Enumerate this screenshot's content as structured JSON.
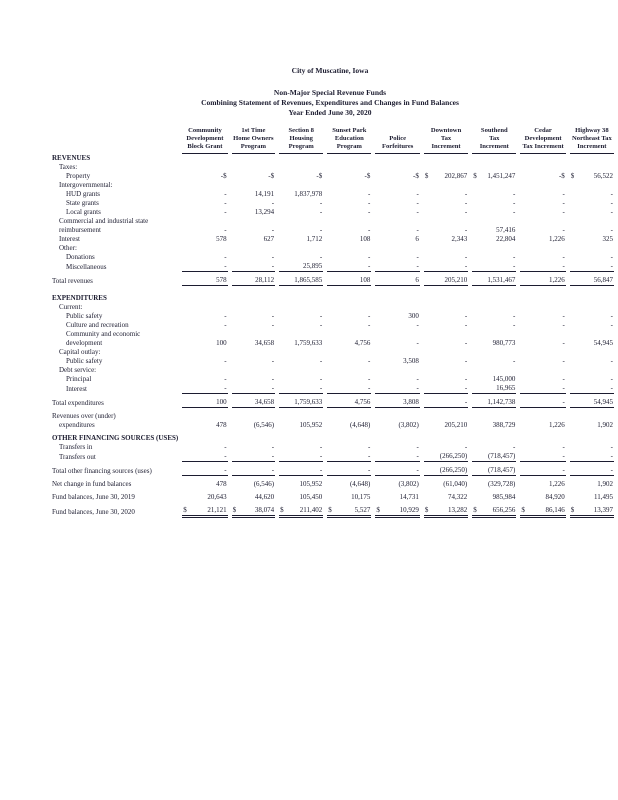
{
  "title": {
    "city": "City of Muscatine, Iowa",
    "line1": "Non-Major Special Revenue Funds",
    "line2": "Combining Statement of Revenues, Expenditures and Changes in Fund Balances",
    "line3": "Year Ended June 30, 2020"
  },
  "columns": [
    [
      "Community",
      "Development",
      "Block Grant"
    ],
    [
      "1st Time",
      "Home Owners",
      "Program"
    ],
    [
      "Section 8",
      "Housing",
      "Program"
    ],
    [
      "Sunset Park",
      "Education",
      "Program"
    ],
    [
      "Police",
      "Forfeitures"
    ],
    [
      "Downtown",
      "Tax",
      "Increment"
    ],
    [
      "Southend",
      "Tax",
      "Increment"
    ],
    [
      "Cedar",
      "Development",
      "Tax Increment"
    ],
    [
      "Highway 38",
      "Northeast Tax",
      "Increment"
    ]
  ],
  "rows": [
    {
      "l": "REVENUES",
      "b": 1
    },
    {
      "l": "Taxes:",
      "i": 1
    },
    {
      "l": "Property",
      "i": 2,
      "v": [
        "-$",
        "-$",
        "-$",
        "-$",
        "-$",
        "$ 202,867",
        "$ 1,451,247",
        "-$",
        "$ 56,522"
      ]
    },
    {
      "l": "Intergovernmental:",
      "i": 1
    },
    {
      "l": "HUD grants",
      "i": 2,
      "v": [
        "-",
        "14,191",
        "1,837,978",
        "-",
        "-",
        "-",
        "-",
        "-",
        "-"
      ]
    },
    {
      "l": "State grants",
      "i": 2,
      "v": [
        "-",
        "-",
        "-",
        "-",
        "-",
        "-",
        "-",
        "-",
        "-"
      ]
    },
    {
      "l": "Local grants",
      "i": 2,
      "v": [
        "-",
        "13,294",
        "-",
        "-",
        "-",
        "-",
        "-",
        "-",
        "-"
      ]
    },
    {
      "l": "Commercial and industrial state",
      "i": 1
    },
    {
      "l": "reimbursement",
      "i": 1,
      "v": [
        "-",
        "-",
        "-",
        "-",
        "-",
        "-",
        "57,416",
        "-",
        "-"
      ]
    },
    {
      "l": "Interest",
      "i": 1,
      "v": [
        "578",
        "627",
        "1,712",
        "108",
        "6",
        "2,343",
        "22,804",
        "1,226",
        "325"
      ]
    },
    {
      "l": "Other:",
      "i": 1
    },
    {
      "l": "Donations",
      "i": 2,
      "v": [
        "-",
        "-",
        "-",
        "-",
        "-",
        "-",
        "-",
        "-",
        "-"
      ]
    },
    {
      "l": "Miscellaneous",
      "i": 2,
      "v": [
        "-",
        "-",
        "25,895",
        "-",
        "-",
        "-",
        "-",
        "-",
        "-"
      ],
      "r": 1
    },
    {
      "sp": 1
    },
    {
      "l": "Total revenues",
      "v": [
        "578",
        "28,112",
        "1,865,585",
        "108",
        "6",
        "205,210",
        "1,531,467",
        "1,226",
        "56,847"
      ],
      "r": 1
    },
    {
      "sp": 1
    },
    {
      "sp": 1
    },
    {
      "l": "EXPENDITURES",
      "b": 1
    },
    {
      "l": "Current:",
      "i": 1
    },
    {
      "l": "Public safety",
      "i": 2,
      "v": [
        "-",
        "-",
        "-",
        "-",
        "300",
        "-",
        "-",
        "-",
        "-"
      ]
    },
    {
      "l": "Culture and recreation",
      "i": 2,
      "v": [
        "-",
        "-",
        "-",
        "-",
        "-",
        "-",
        "-",
        "-",
        "-"
      ]
    },
    {
      "l": "Community and economic",
      "i": 2
    },
    {
      "l": "development",
      "i": 2,
      "v": [
        "100",
        "34,658",
        "1,759,633",
        "4,756",
        "-",
        "-",
        "980,773",
        "-",
        "54,945"
      ]
    },
    {
      "l": "Capital outlay:",
      "i": 1
    },
    {
      "l": "Public safety",
      "i": 2,
      "v": [
        "-",
        "-",
        "-",
        "-",
        "3,508",
        "-",
        "-",
        "-",
        "-"
      ]
    },
    {
      "l": "Debt service:",
      "i": 1
    },
    {
      "l": "Principal",
      "i": 2,
      "v": [
        "-",
        "-",
        "-",
        "-",
        "-",
        "-",
        "145,000",
        "-",
        "-"
      ]
    },
    {
      "l": "Interest",
      "i": 2,
      "v": [
        "-",
        "-",
        "-",
        "-",
        "-",
        "-",
        "16,965",
        "-",
        "-"
      ],
      "r": 1
    },
    {
      "sp": 1
    },
    {
      "l": "Total expenditures",
      "v": [
        "100",
        "34,658",
        "1,759,633",
        "4,756",
        "3,808",
        "-",
        "1,142,738",
        "-",
        "54,945"
      ],
      "r": 1
    },
    {
      "sp": 1
    },
    {
      "l": "Revenues over (under)"
    },
    {
      "l": "expenditures",
      "i": 1,
      "v": [
        "478",
        "(6,546)",
        "105,952",
        "(4,648)",
        "(3,802)",
        "205,210",
        "388,729",
        "1,226",
        "1,902"
      ]
    },
    {
      "sp": 1
    },
    {
      "l": "OTHER FINANCING SOURCES (USES)",
      "b": 1
    },
    {
      "l": "Transfers in",
      "i": 1,
      "v": [
        "-",
        "-",
        "-",
        "-",
        "-",
        "-",
        "-",
        "-",
        "-"
      ]
    },
    {
      "l": "Transfers out",
      "i": 1,
      "v": [
        "-",
        "-",
        "-",
        "-",
        "-",
        "(266,250)",
        "(718,457)",
        "-",
        "-"
      ],
      "r": 1
    },
    {
      "sp": 1
    },
    {
      "l": "Total other financing sources (uses)",
      "v": [
        "-",
        "-",
        "-",
        "-",
        "-",
        "(266,250)",
        "(718,457)",
        "-",
        "-"
      ],
      "r": 1
    },
    {
      "sp": 1
    },
    {
      "l": "Net change in fund balances",
      "v": [
        "478",
        "(6,546)",
        "105,952",
        "(4,648)",
        "(3,802)",
        "(61,040)",
        "(329,728)",
        "1,226",
        "1,902"
      ]
    },
    {
      "sp": 1
    },
    {
      "l": "Fund balances, June 30, 2019",
      "v": [
        "20,643",
        "44,620",
        "105,450",
        "10,175",
        "14,731",
        "74,322",
        "985,984",
        "84,920",
        "11,495"
      ]
    },
    {
      "sp": 1
    },
    {
      "l": "Fund balances, June 30, 2020",
      "v": [
        "$ 21,121",
        "$ 38,074",
        "$ 211,402",
        "$ 5,527",
        "$ 10,929",
        "$ 13,282",
        "$ 656,256",
        "$ 86,146",
        "$ 13,397"
      ],
      "r": 2
    }
  ]
}
